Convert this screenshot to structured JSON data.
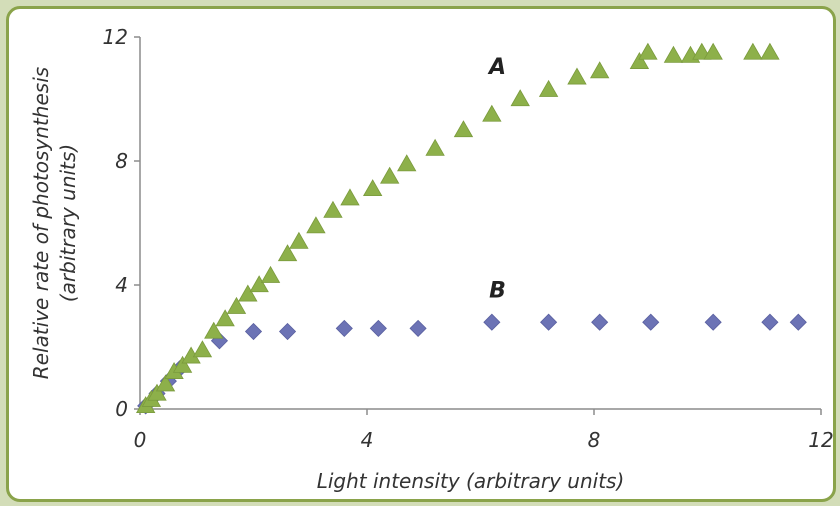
{
  "chart_data": {
    "type": "scatter",
    "title": "",
    "xlabel": "Light intensity (arbitrary units)",
    "ylabel_line1": "Relative rate of photosynthesis",
    "ylabel_line2": "(arbitrary units)",
    "xlim": [
      0,
      12
    ],
    "ylim": [
      0,
      12
    ],
    "xticks": [
      "0",
      "4",
      "8",
      "12"
    ],
    "yticks": [
      "0",
      "4",
      "8",
      "12"
    ],
    "grid": false,
    "series": [
      {
        "name": "A",
        "marker": "triangle",
        "color": "#8db04a",
        "points": [
          [
            0.1,
            0.1
          ],
          [
            0.2,
            0.3
          ],
          [
            0.3,
            0.5
          ],
          [
            0.45,
            0.8
          ],
          [
            0.6,
            1.2
          ],
          [
            0.75,
            1.4
          ],
          [
            0.9,
            1.7
          ],
          [
            1.1,
            1.9
          ],
          [
            1.3,
            2.5
          ],
          [
            1.5,
            2.9
          ],
          [
            1.7,
            3.3
          ],
          [
            1.9,
            3.7
          ],
          [
            2.1,
            4.0
          ],
          [
            2.3,
            4.3
          ],
          [
            2.6,
            5.0
          ],
          [
            2.8,
            5.4
          ],
          [
            3.1,
            5.9
          ],
          [
            3.4,
            6.4
          ],
          [
            3.7,
            6.8
          ],
          [
            4.1,
            7.1
          ],
          [
            4.4,
            7.5
          ],
          [
            4.7,
            7.9
          ],
          [
            5.2,
            8.4
          ],
          [
            5.7,
            9.0
          ],
          [
            6.2,
            9.5
          ],
          [
            6.7,
            10.0
          ],
          [
            7.2,
            10.3
          ],
          [
            7.7,
            10.7
          ],
          [
            8.1,
            10.9
          ],
          [
            8.8,
            11.2
          ],
          [
            8.95,
            11.5
          ],
          [
            9.4,
            11.4
          ],
          [
            9.7,
            11.4
          ],
          [
            9.9,
            11.5
          ],
          [
            10.1,
            11.5
          ],
          [
            10.8,
            11.5
          ],
          [
            11.1,
            11.5
          ]
        ]
      },
      {
        "name": "B",
        "marker": "diamond",
        "color": "#6c73b5",
        "points": [
          [
            0.1,
            0.1
          ],
          [
            0.3,
            0.5
          ],
          [
            0.5,
            0.9
          ],
          [
            0.7,
            1.3
          ],
          [
            1.4,
            2.2
          ],
          [
            2.0,
            2.5
          ],
          [
            2.6,
            2.5
          ],
          [
            3.6,
            2.6
          ],
          [
            4.2,
            2.6
          ],
          [
            4.9,
            2.6
          ],
          [
            6.2,
            2.8
          ],
          [
            7.2,
            2.8
          ],
          [
            8.1,
            2.8
          ],
          [
            9.0,
            2.8
          ],
          [
            10.1,
            2.8
          ],
          [
            11.1,
            2.8
          ],
          [
            11.6,
            2.8
          ]
        ]
      }
    ],
    "annotations": [
      {
        "text": "A",
        "x": 6.3,
        "y": 10.8
      },
      {
        "text": "B",
        "x": 6.3,
        "y": 3.6
      }
    ]
  }
}
